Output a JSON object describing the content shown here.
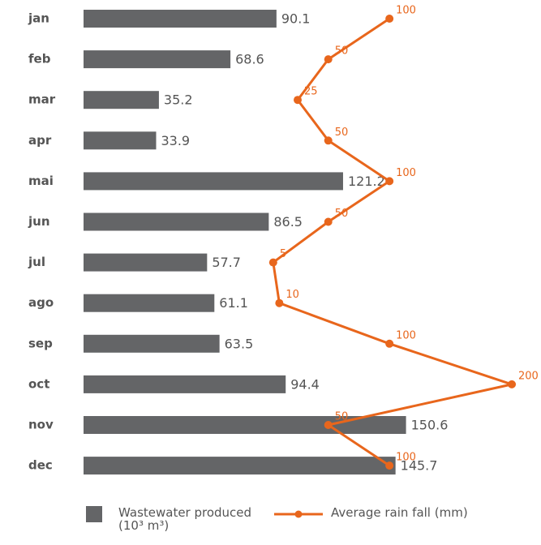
{
  "chart_data": {
    "type": "bar",
    "orientation": "horizontal",
    "categories": [
      "jan",
      "feb",
      "mar",
      "apr",
      "mai",
      "jun",
      "jul",
      "ago",
      "sep",
      "oct",
      "nov",
      "dec"
    ],
    "series": [
      {
        "name": "Wastewater produced (10³ m³)",
        "type": "bar",
        "color": "#646567",
        "values": [
          90.1,
          68.6,
          35.2,
          33.9,
          121.2,
          86.5,
          57.7,
          61.1,
          63.5,
          94.4,
          150.6,
          145.7
        ]
      },
      {
        "name": "Average rain fall (mm)",
        "type": "line",
        "axis": "x2",
        "color": "#e8661c",
        "values": [
          100,
          50,
          25,
          50,
          100,
          50,
          5,
          10,
          100,
          200,
          50,
          100
        ]
      }
    ],
    "xlim": [
      0,
      200
    ],
    "x2lim": [
      -150,
      200
    ],
    "legend": "bottom"
  }
}
